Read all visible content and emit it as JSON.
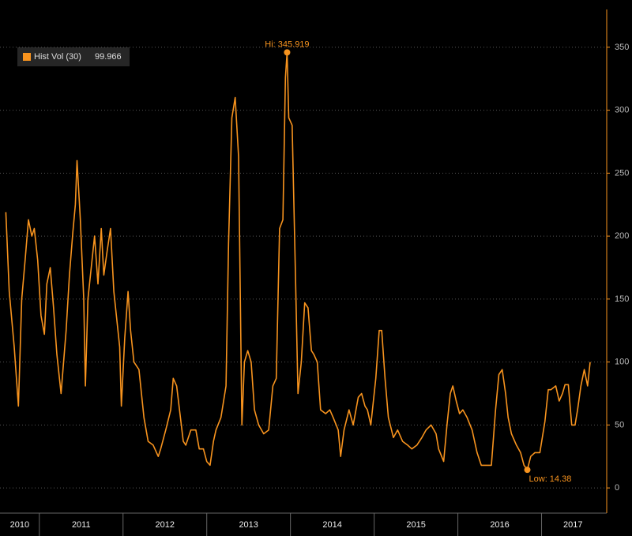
{
  "chart_data": {
    "type": "line",
    "series": [
      {
        "name": "Hist Vol (30)",
        "color": "#f7931e",
        "values": [
          219,
          156,
          112,
          65,
          150,
          181,
          213,
          200,
          206,
          181,
          137,
          122,
          162,
          175,
          143,
          106,
          75,
          125,
          169,
          203,
          225,
          260,
          213,
          150,
          81,
          150,
          175,
          200,
          162,
          206,
          169,
          188,
          206,
          156,
          137,
          112,
          65,
          119,
          156,
          125,
          100,
          94,
          56,
          37,
          34,
          25,
          31,
          46,
          62,
          87,
          81,
          59,
          37,
          34,
          46,
          46,
          31,
          31,
          21,
          18,
          37,
          46,
          56,
          81,
          194,
          294,
          310,
          263,
          50,
          100,
          109,
          100,
          62,
          50,
          43,
          46,
          81,
          87,
          206,
          213,
          326,
          345.919,
          294,
          288,
          169,
          75,
          100,
          147,
          143,
          109,
          106,
          100,
          62,
          59,
          62,
          56,
          46,
          25,
          46,
          62,
          50,
          72,
          75,
          65,
          62,
          50,
          87,
          125,
          125,
          87,
          56,
          40,
          46,
          37,
          34,
          31,
          34,
          40,
          46,
          50,
          43,
          31,
          21,
          50,
          75,
          81,
          69,
          59,
          62,
          56,
          46,
          28,
          18,
          18,
          18,
          62,
          90,
          94,
          75,
          56,
          43,
          34,
          28,
          18,
          14.38,
          25,
          28,
          28,
          53,
          78,
          78,
          81,
          69,
          75,
          82,
          82,
          50,
          50,
          62,
          81,
          94,
          81,
          99.966
        ]
      }
    ],
    "x": [
      2010.6,
      2010.64,
      2010.7,
      2010.75,
      2010.79,
      2010.83,
      2010.87,
      2010.91,
      2010.94,
      2010.98,
      2011.02,
      2011.06,
      2011.09,
      2011.13,
      2011.17,
      2011.21,
      2011.26,
      2011.32,
      2011.36,
      2011.4,
      2011.43,
      2011.45,
      2011.49,
      2011.53,
      2011.55,
      2011.58,
      2011.62,
      2011.66,
      2011.7,
      2011.74,
      2011.77,
      2011.81,
      2011.85,
      2011.89,
      2011.92,
      2011.96,
      2011.98,
      2012.02,
      2012.06,
      2012.09,
      2012.13,
      2012.19,
      2012.25,
      2012.3,
      2012.36,
      2012.42,
      2012.45,
      2012.51,
      2012.57,
      2012.6,
      2012.64,
      2012.68,
      2012.72,
      2012.75,
      2012.81,
      2012.87,
      2012.91,
      2012.96,
      2013.0,
      2013.04,
      2013.08,
      2013.11,
      2013.17,
      2013.23,
      2013.26,
      2013.3,
      2013.34,
      2013.38,
      2013.42,
      2013.45,
      2013.49,
      2013.53,
      2013.57,
      2013.62,
      2013.68,
      2013.74,
      2013.79,
      2013.83,
      2013.87,
      2013.91,
      2013.94,
      2013.96,
      2013.98,
      2014.02,
      2014.06,
      2014.09,
      2014.13,
      2014.17,
      2014.21,
      2014.25,
      2014.28,
      2014.32,
      2014.36,
      2014.42,
      2014.47,
      2014.51,
      2014.57,
      2014.6,
      2014.64,
      2014.7,
      2014.75,
      2014.81,
      2014.85,
      2014.89,
      2014.92,
      2014.96,
      2015.02,
      2015.06,
      2015.09,
      2015.13,
      2015.17,
      2015.23,
      2015.28,
      2015.34,
      2015.4,
      2015.45,
      2015.51,
      2015.57,
      2015.62,
      2015.68,
      2015.74,
      2015.77,
      2015.83,
      2015.87,
      2015.91,
      2015.94,
      2015.98,
      2016.02,
      2016.06,
      2016.11,
      2016.17,
      2016.23,
      2016.28,
      2016.34,
      2016.4,
      2016.45,
      2016.49,
      2016.53,
      2016.57,
      2016.6,
      2016.64,
      2016.7,
      2016.75,
      2016.79,
      2016.83,
      2016.87,
      2016.92,
      2016.98,
      2017.04,
      2017.08,
      2017.11,
      2017.17,
      2017.21,
      2017.25,
      2017.28,
      2017.32,
      2017.36,
      2017.4,
      2017.43,
      2017.47,
      2017.51,
      2017.55,
      2017.58
    ],
    "xlim": [
      2010.53,
      2017.75
    ],
    "xticks": [
      2011,
      2012,
      2013,
      2014,
      2015,
      2016,
      2017
    ],
    "year_labels": [
      "2010",
      "2011",
      "2012",
      "2013",
      "2014",
      "2015",
      "2016",
      "2017"
    ],
    "ylim": [
      -20,
      380
    ],
    "yticks": [
      0,
      50,
      100,
      150,
      200,
      250,
      300,
      350
    ],
    "grid": true,
    "annotations": [
      {
        "text": "Hi: 345.919"
      },
      {
        "text": "Low: 14.38"
      }
    ]
  }
}
